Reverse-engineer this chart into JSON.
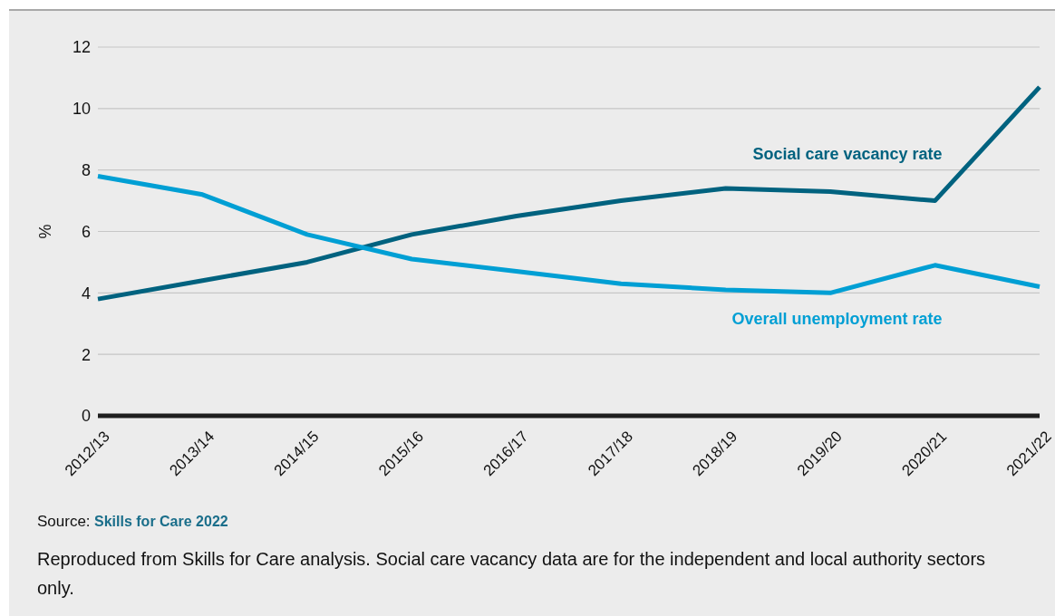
{
  "chart_data": {
    "type": "line",
    "ylabel": "%",
    "categories": [
      "2012/13",
      "2013/14",
      "2014/15",
      "2015/16",
      "2016/17",
      "2017/18",
      "2018/19",
      "2019/20",
      "2020/21",
      "2021/22"
    ],
    "series": [
      {
        "name": "Social care vacancy rate",
        "color": "#00627f",
        "values": [
          3.8,
          4.4,
          5.0,
          5.9,
          6.5,
          7.0,
          7.4,
          7.3,
          7.0,
          10.7
        ]
      },
      {
        "name": "Overall unemployment rate",
        "color": "#009fd4",
        "values": [
          7.8,
          7.2,
          5.9,
          5.1,
          4.7,
          4.3,
          4.1,
          4.0,
          4.9,
          4.2
        ]
      }
    ],
    "ylim": [
      0,
      12
    ],
    "yticks": [
      0,
      2,
      4,
      6,
      8,
      10,
      12
    ],
    "grid": "y",
    "marker": "none",
    "line_style": "solid",
    "annotations": [
      "Source: Skills for Care 2022",
      "Reproduced from Skills for Care analysis. Social care vacancy data are for the independent and local authority sectors only."
    ]
  }
}
